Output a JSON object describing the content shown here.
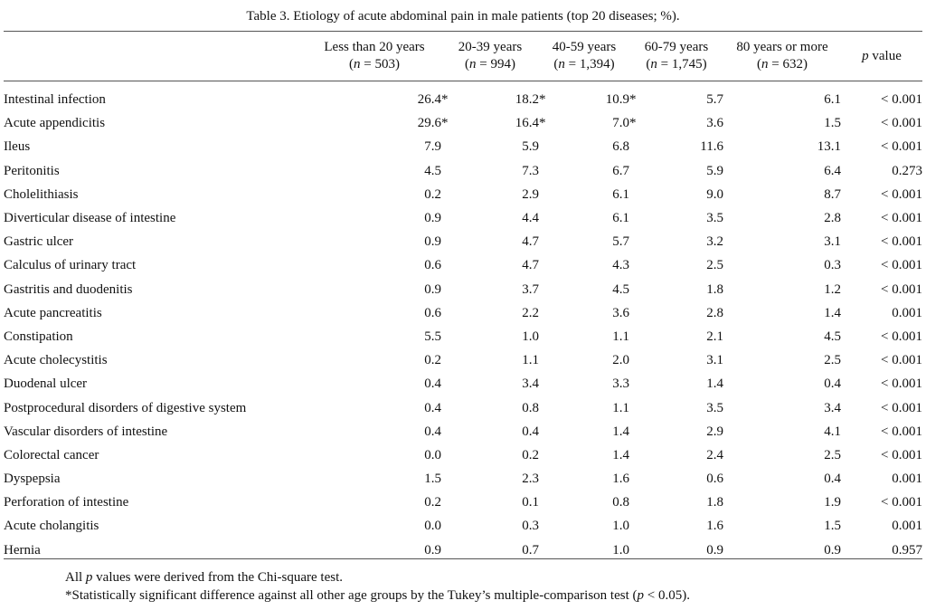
{
  "caption": "Table 3.  Etiology of acute abdominal pain in male patients (top 20 diseases; %).",
  "columns": [
    {
      "label": "Less than 20 years",
      "n": "503"
    },
    {
      "label": "20-39 years",
      "n": "994"
    },
    {
      "label": "40-59 years",
      "n": "1,394"
    },
    {
      "label": "60-79 years",
      "n": "1,745"
    },
    {
      "label": "80 years or more",
      "n": "632"
    }
  ],
  "p_header": {
    "p": "p",
    "word": "value"
  },
  "n_symbol": "n",
  "rows": [
    {
      "name": "Intestinal infection",
      "values": [
        "26.4*",
        "18.2*",
        "10.9*",
        "5.7",
        "6.1"
      ],
      "p": "< 0.001"
    },
    {
      "name": "Acute appendicitis",
      "values": [
        "29.6*",
        "16.4*",
        "7.0*",
        "3.6",
        "1.5"
      ],
      "p": "< 0.001"
    },
    {
      "name": "Ileus",
      "values": [
        "7.9",
        "5.9",
        "6.8",
        "11.6",
        "13.1"
      ],
      "p": "< 0.001"
    },
    {
      "name": "Peritonitis",
      "values": [
        "4.5",
        "7.3",
        "6.7",
        "5.9",
        "6.4"
      ],
      "p": "0.273"
    },
    {
      "name": "Cholelithiasis",
      "values": [
        "0.2",
        "2.9",
        "6.1",
        "9.0",
        "8.7"
      ],
      "p": "< 0.001"
    },
    {
      "name": "Diverticular disease of intestine",
      "values": [
        "0.9",
        "4.4",
        "6.1",
        "3.5",
        "2.8"
      ],
      "p": "< 0.001"
    },
    {
      "name": "Gastric ulcer",
      "values": [
        "0.9",
        "4.7",
        "5.7",
        "3.2",
        "3.1"
      ],
      "p": "< 0.001"
    },
    {
      "name": "Calculus of urinary tract",
      "values": [
        "0.6",
        "4.7",
        "4.3",
        "2.5",
        "0.3"
      ],
      "p": "< 0.001"
    },
    {
      "name": "Gastritis and duodenitis",
      "values": [
        "0.9",
        "3.7",
        "4.5",
        "1.8",
        "1.2"
      ],
      "p": "< 0.001"
    },
    {
      "name": "Acute pancreatitis",
      "values": [
        "0.6",
        "2.2",
        "3.6",
        "2.8",
        "1.4"
      ],
      "p": "0.001"
    },
    {
      "name": "Constipation",
      "values": [
        "5.5",
        "1.0",
        "1.1",
        "2.1",
        "4.5"
      ],
      "p": "< 0.001"
    },
    {
      "name": "Acute cholecystitis",
      "values": [
        "0.2",
        "1.1",
        "2.0",
        "3.1",
        "2.5"
      ],
      "p": "< 0.001"
    },
    {
      "name": "Duodenal ulcer",
      "values": [
        "0.4",
        "3.4",
        "3.3",
        "1.4",
        "0.4"
      ],
      "p": "< 0.001"
    },
    {
      "name": "Postprocedural disorders of digestive system",
      "values": [
        "0.4",
        "0.8",
        "1.1",
        "3.5",
        "3.4"
      ],
      "p": "< 0.001"
    },
    {
      "name": "Vascular disorders of intestine",
      "values": [
        "0.4",
        "0.4",
        "1.4",
        "2.9",
        "4.1"
      ],
      "p": "< 0.001"
    },
    {
      "name": "Colorectal cancer",
      "values": [
        "0.0",
        "0.2",
        "1.4",
        "2.4",
        "2.5"
      ],
      "p": "< 0.001"
    },
    {
      "name": "Dyspepsia",
      "values": [
        "1.5",
        "2.3",
        "1.6",
        "0.6",
        "0.4"
      ],
      "p": "0.001"
    },
    {
      "name": "Perforation of intestine",
      "values": [
        "0.2",
        "0.1",
        "0.8",
        "1.8",
        "1.9"
      ],
      "p": "< 0.001"
    },
    {
      "name": "Acute cholangitis",
      "values": [
        "0.0",
        "0.3",
        "1.0",
        "1.6",
        "1.5"
      ],
      "p": "0.001"
    },
    {
      "name": "Hernia",
      "values": [
        "0.9",
        "0.7",
        "1.0",
        "0.9",
        "0.9"
      ],
      "p": "0.957"
    }
  ],
  "notes": {
    "line1": {
      "pre": "All ",
      "p": "p",
      "post": " values were derived from the Chi-square test."
    },
    "line2": {
      "pre": "*Statistically significant difference against all other age groups by the Tukey’s multiple-comparison test (",
      "p": "p",
      "post": " < 0.05)."
    }
  }
}
